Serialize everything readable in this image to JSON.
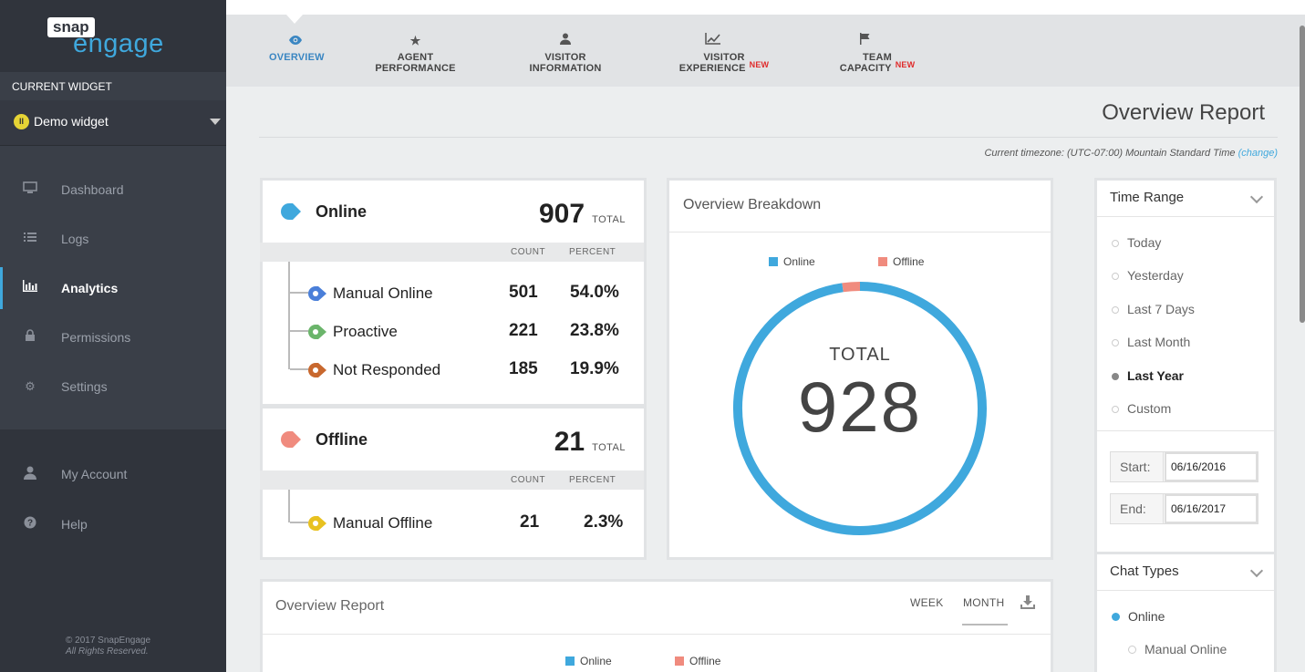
{
  "brand": {
    "snap": "snap",
    "engage": "engage",
    "accent": "#3fa8dd"
  },
  "sidebar": {
    "current_widget_label": "CURRENT WIDGET",
    "widget_name": "Demo widget",
    "items": [
      {
        "label": "Dashboard",
        "icon": "monitor-icon"
      },
      {
        "label": "Logs",
        "icon": "list-icon"
      },
      {
        "label": "Analytics",
        "icon": "bar-chart-icon",
        "active": true
      },
      {
        "label": "Permissions",
        "icon": "lock-icon"
      },
      {
        "label": "Settings",
        "icon": "gear-icon"
      }
    ],
    "bottom_items": [
      {
        "label": "My Account",
        "icon": "user-icon"
      },
      {
        "label": "Help",
        "icon": "help-icon"
      }
    ],
    "copyright": "© 2017 SnapEngage",
    "rights": "All Rights Reserved."
  },
  "tabs": [
    {
      "label": "OVERVIEW",
      "icon": "eye-icon",
      "active": true
    },
    {
      "label": "AGENT PERFORMANCE",
      "icon": "star-icon"
    },
    {
      "label": "VISITOR INFORMATION",
      "icon": "person-icon"
    },
    {
      "label": "VISITOR EXPERIENCE",
      "icon": "line-chart-icon",
      "badge": "NEW"
    },
    {
      "label": "TEAM CAPACITY",
      "icon": "flag-icon",
      "badge": "NEW"
    }
  ],
  "page": {
    "title": "Overview Report",
    "timezone_text": "Current timezone: (UTC-07:00) Mountain Standard Time",
    "timezone_link": "(change)"
  },
  "online": {
    "title": "Online",
    "total": "907",
    "total_label": "TOTAL",
    "count_header": "COUNT",
    "percent_header": "PERCENT",
    "rows": [
      {
        "label": "Manual Online",
        "count": "501",
        "percent": "54.0%",
        "color": "#4a7fd9"
      },
      {
        "label": "Proactive",
        "count": "221",
        "percent": "23.8%",
        "color": "#6bb56b"
      },
      {
        "label": "Not Responded",
        "count": "185",
        "percent": "19.9%",
        "color": "#c8682e"
      }
    ]
  },
  "offline": {
    "title": "Offline",
    "total": "21",
    "total_label": "TOTAL",
    "count_header": "COUNT",
    "percent_header": "PERCENT",
    "rows": [
      {
        "label": "Manual Offline",
        "count": "21",
        "percent": "2.3%",
        "color": "#e8c120"
      }
    ]
  },
  "breakdown": {
    "title": "Overview Breakdown",
    "legend": [
      {
        "label": "Online",
        "color": "#3fa8dd"
      },
      {
        "label": "Offline",
        "color": "#f08b7e"
      }
    ],
    "total_label": "TOTAL",
    "total": "928",
    "online_value": 907,
    "offline_value": 21
  },
  "time_range": {
    "title": "Time Range",
    "options": [
      "Today",
      "Yesterday",
      "Last 7 Days",
      "Last Month",
      "Last Year",
      "Custom"
    ],
    "selected": "Last Year",
    "start_label": "Start:",
    "start_value": "06/16/2016",
    "end_label": "End:",
    "end_value": "06/16/2017"
  },
  "chat_types": {
    "title": "Chat Types",
    "items": [
      {
        "label": "Online",
        "selected": true
      },
      {
        "label": "Manual Online",
        "selected": false
      }
    ]
  },
  "overview_report": {
    "title": "Overview Report",
    "week": "WEEK",
    "month": "MONTH",
    "legend": [
      {
        "label": "Online",
        "color": "#3fa8dd"
      },
      {
        "label": "Offline",
        "color": "#f08b7e"
      }
    ]
  }
}
